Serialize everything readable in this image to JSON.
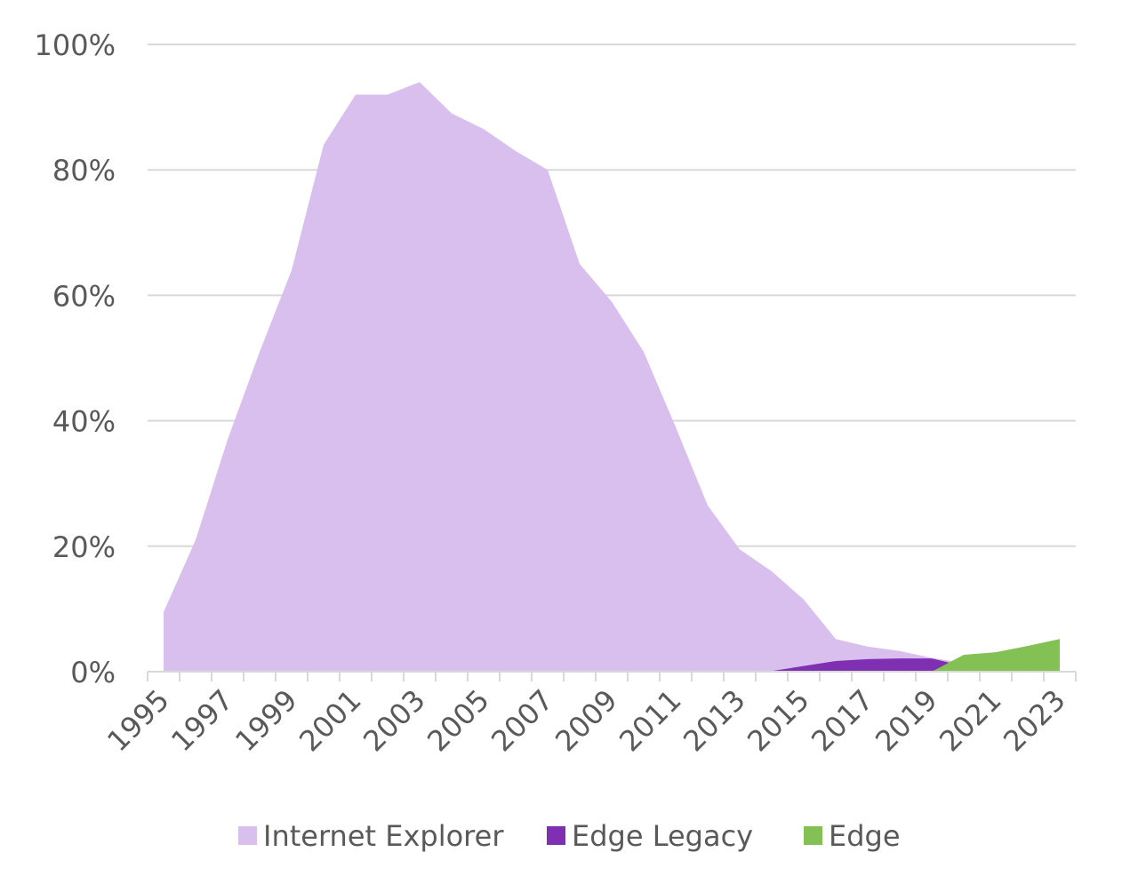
{
  "chart_data": {
    "type": "area",
    "stacked": false,
    "x": [
      1995,
      1996,
      1997,
      1998,
      1999,
      2000,
      2001,
      2002,
      2003,
      2004,
      2005,
      2006,
      2007,
      2008,
      2009,
      2010,
      2011,
      2012,
      2013,
      2014,
      2015,
      2016,
      2017,
      2018,
      2019,
      2020,
      2021,
      2022,
      2023
    ],
    "x_tick_labels": [
      "1995",
      "1997",
      "1999",
      "2001",
      "2003",
      "2005",
      "2007",
      "2009",
      "2011",
      "2013",
      "2015",
      "2017",
      "2019",
      "2021",
      "2023"
    ],
    "y_tick_labels": [
      "0%",
      "20%",
      "40%",
      "60%",
      "80%",
      "100%"
    ],
    "ylim": [
      0,
      100
    ],
    "y_unit": "%",
    "grid": true,
    "legend_position": "bottom",
    "series": [
      {
        "name": "Internet Explorer",
        "color": "#d9bfee",
        "values": [
          9.5,
          21,
          37,
          51,
          64,
          84,
          92,
          92,
          94,
          89,
          86.5,
          83,
          80,
          65,
          59,
          51,
          39,
          26.5,
          19.5,
          16,
          11.5,
          5.2,
          4,
          3.3,
          2.2,
          1.4,
          0.8,
          0.3,
          0
        ]
      },
      {
        "name": "Edge Legacy",
        "color": "#7f2fb2",
        "values": [
          0,
          0,
          0,
          0,
          0,
          0,
          0,
          0,
          0,
          0,
          0,
          0,
          0,
          0,
          0,
          0,
          0,
          0,
          0,
          0.1,
          0.9,
          1.7,
          2,
          2.1,
          2.1,
          0.9,
          0.4,
          0.1,
          0
        ]
      },
      {
        "name": "Edge",
        "color": "#84c155",
        "values": [
          0,
          0,
          0,
          0,
          0,
          0,
          0,
          0,
          0,
          0,
          0,
          0,
          0,
          0,
          0,
          0,
          0,
          0,
          0,
          0,
          0,
          0,
          0,
          0,
          0,
          2.7,
          3.1,
          4.1,
          5.2
        ]
      }
    ]
  }
}
